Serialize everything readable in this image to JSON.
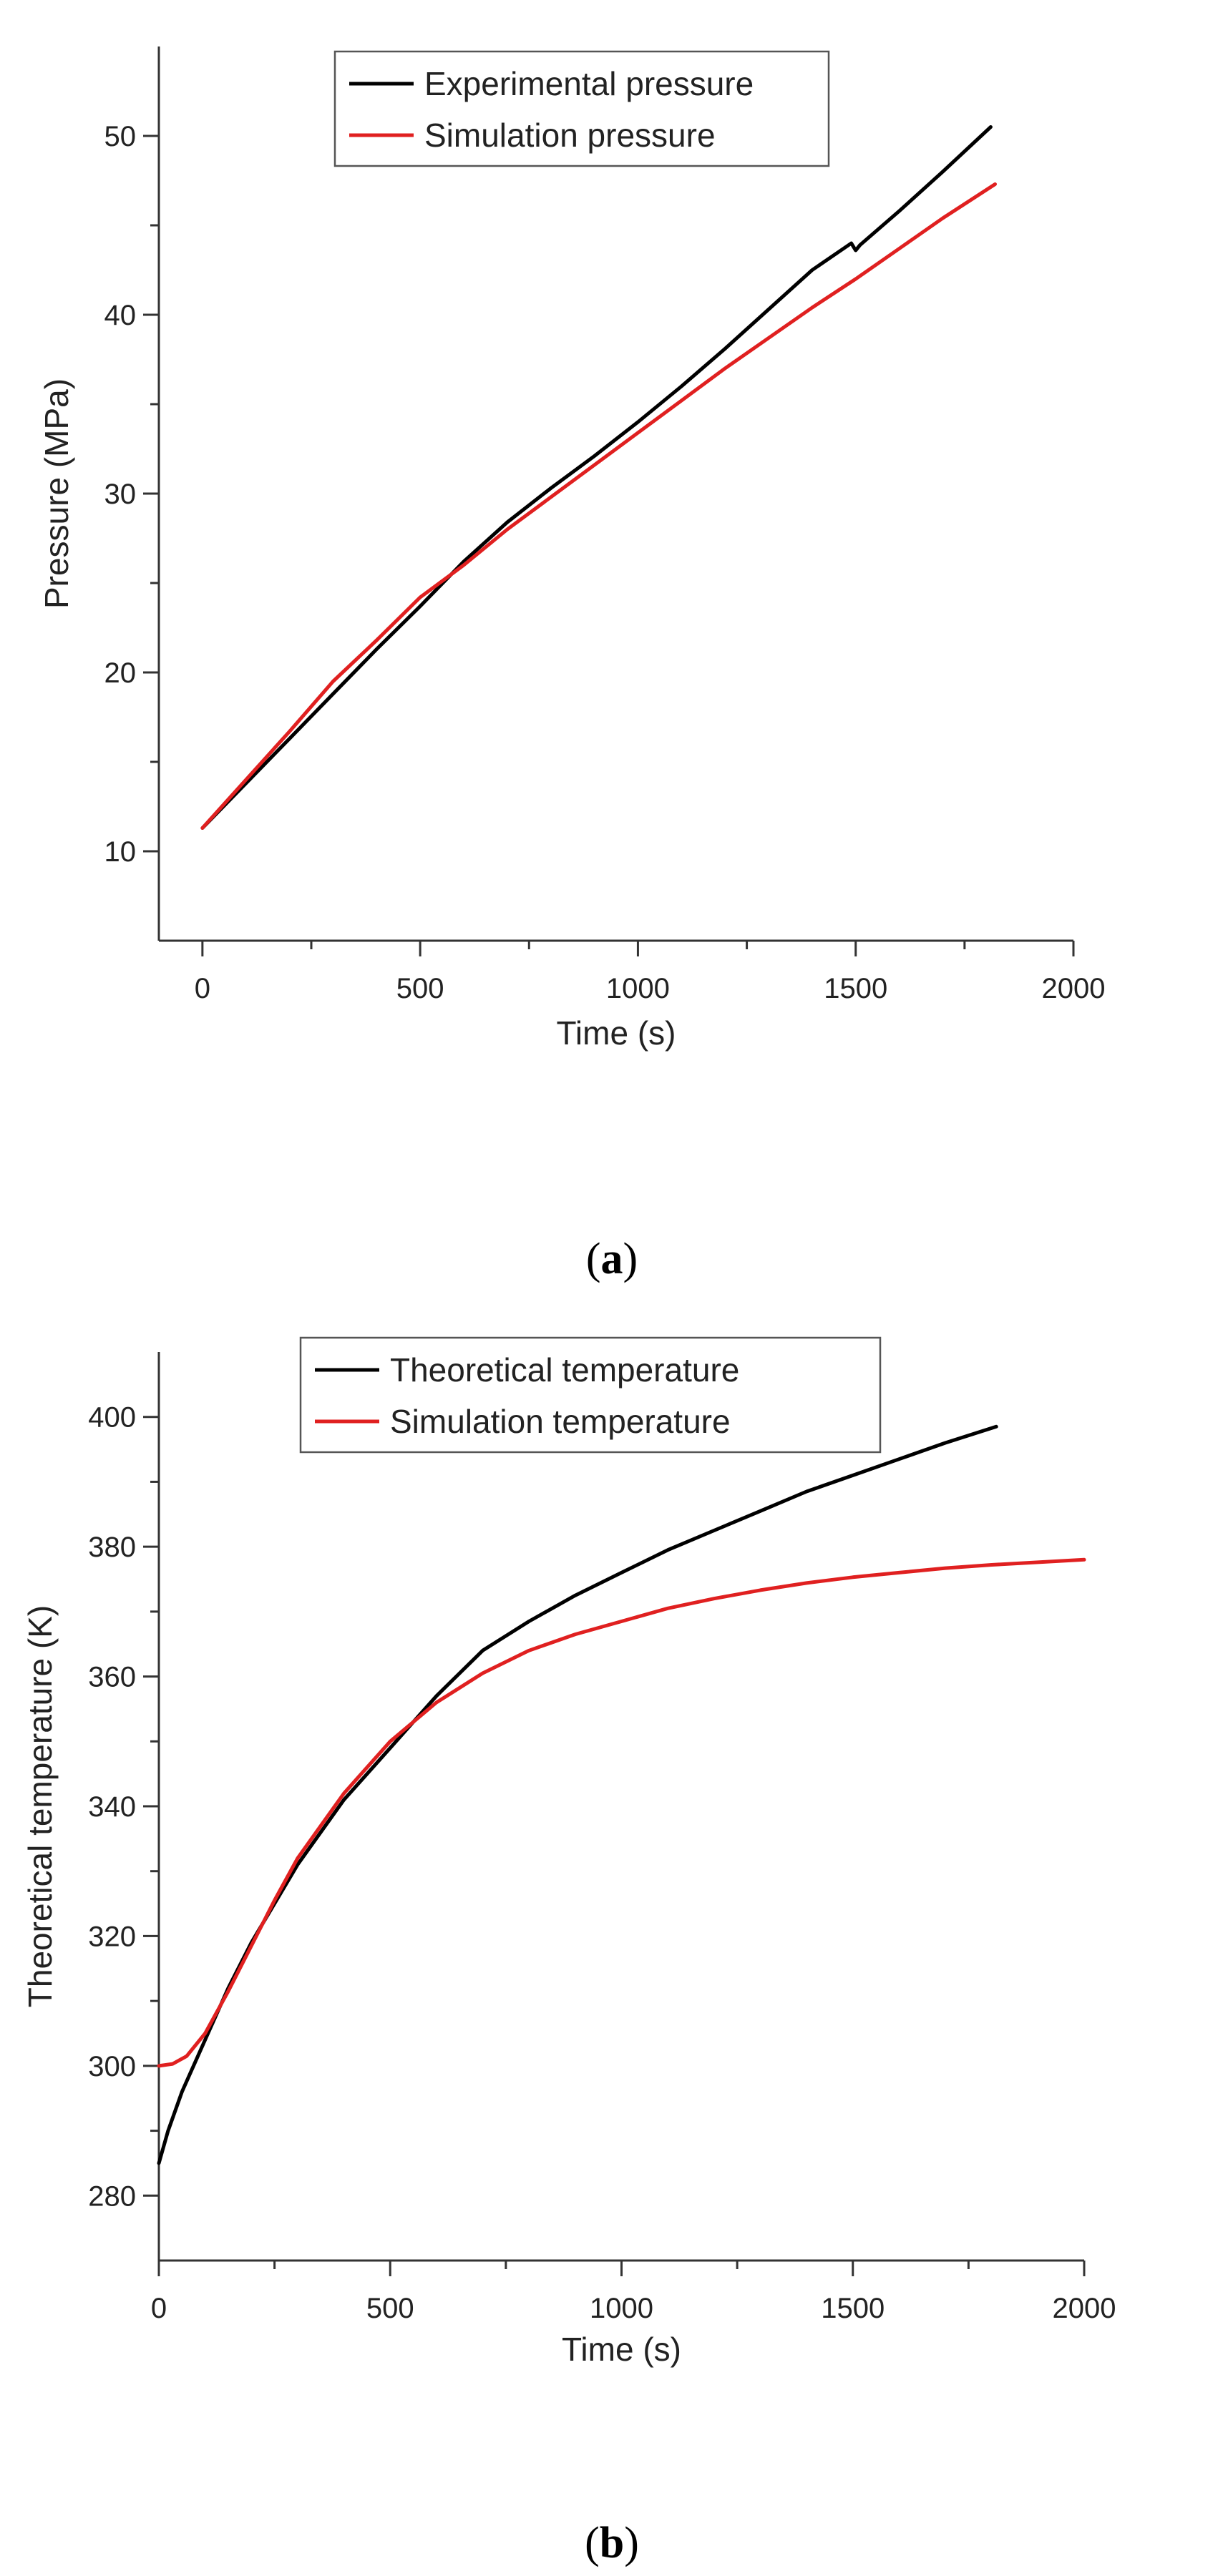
{
  "chart_data": [
    {
      "type": "line",
      "panel": "a",
      "title": "",
      "xlabel": "Time (s)",
      "ylabel": "Pressure (MPa)",
      "xlim": [
        -100,
        2000
      ],
      "ylim": [
        5,
        55
      ],
      "xticks": [
        0,
        500,
        1000,
        1500,
        2000
      ],
      "yticks": [
        10,
        20,
        30,
        40,
        50
      ],
      "legend": "top-center",
      "series": [
        {
          "name": "Experimental pressure",
          "color": "#000000",
          "x": [
            0,
            100,
            200,
            300,
            400,
            500,
            600,
            700,
            800,
            900,
            1000,
            1100,
            1200,
            1300,
            1400,
            1490,
            1500,
            1510,
            1600,
            1700,
            1810
          ],
          "y": [
            11.3,
            13.8,
            16.3,
            18.8,
            21.3,
            23.7,
            26.2,
            28.4,
            30.3,
            32.1,
            34.0,
            36.0,
            38.1,
            40.3,
            42.5,
            44.0,
            43.6,
            43.9,
            45.8,
            48.0,
            50.5
          ]
        },
        {
          "name": "Simulation pressure",
          "color": "#e02020",
          "x": [
            0,
            100,
            200,
            300,
            400,
            500,
            600,
            700,
            800,
            900,
            1000,
            1100,
            1200,
            1300,
            1400,
            1500,
            1600,
            1700,
            1820
          ],
          "y": [
            11.3,
            14.0,
            16.7,
            19.5,
            21.8,
            24.2,
            26.0,
            28.0,
            29.8,
            31.6,
            33.4,
            35.2,
            37.0,
            38.7,
            40.4,
            42.0,
            43.7,
            45.4,
            47.3
          ]
        }
      ]
    },
    {
      "type": "line",
      "panel": "b",
      "title": "",
      "xlabel": "Time (s)",
      "ylabel": "Theoretical temperature (K)",
      "xlim": [
        0,
        2000
      ],
      "ylim": [
        270,
        410
      ],
      "xticks": [
        0,
        500,
        1000,
        1500,
        2000
      ],
      "yticks": [
        280,
        300,
        320,
        340,
        360,
        380,
        400
      ],
      "legend": "top-center",
      "series": [
        {
          "name": "Theoretical temperature",
          "color": "#000000",
          "x": [
            0,
            20,
            50,
            100,
            150,
            200,
            250,
            300,
            400,
            500,
            600,
            700,
            800,
            900,
            1000,
            1100,
            1200,
            1300,
            1400,
            1500,
            1600,
            1700,
            1810
          ],
          "y": [
            285,
            290,
            296,
            304,
            312,
            319,
            325,
            331,
            341,
            349,
            357,
            364,
            368.5,
            372.5,
            376,
            379.5,
            382.5,
            385.5,
            388.5,
            391,
            393.5,
            396,
            398.5
          ]
        },
        {
          "name": "Simulation temperature",
          "color": "#e02020",
          "x": [
            0,
            30,
            60,
            100,
            150,
            200,
            250,
            300,
            400,
            500,
            600,
            700,
            800,
            900,
            1000,
            1100,
            1200,
            1300,
            1400,
            1500,
            1600,
            1700,
            1800,
            2000
          ],
          "y": [
            300,
            300.3,
            301.5,
            305,
            311.5,
            318.5,
            325.5,
            332,
            342,
            350,
            356,
            360.5,
            364,
            366.5,
            368.5,
            370.5,
            372,
            373.3,
            374.4,
            375.3,
            376,
            376.7,
            377.2,
            378
          ]
        }
      ]
    }
  ],
  "captions": {
    "a": "a",
    "b": "b"
  }
}
